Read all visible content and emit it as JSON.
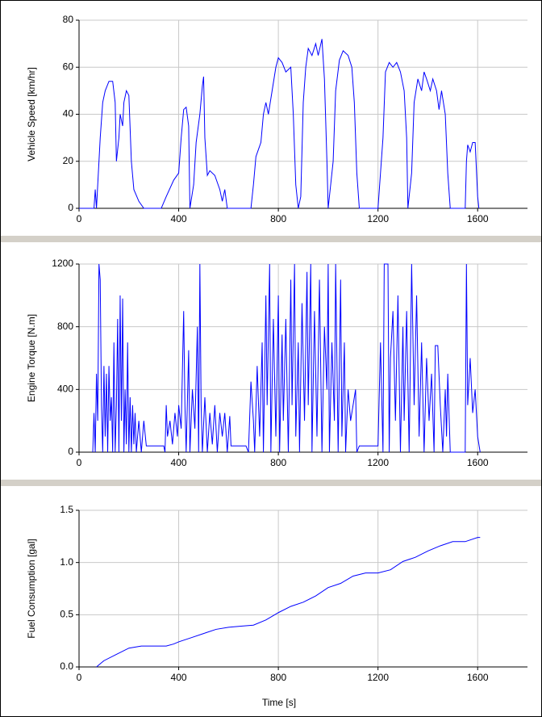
{
  "chart_data": [
    {
      "type": "line",
      "y_label": "Vehicle Speed [km/hr]",
      "color": "#0000ff",
      "xlim": [
        0,
        1800
      ],
      "xticks": [
        0,
        400,
        800,
        1200,
        1600
      ],
      "ylim": [
        0,
        80
      ],
      "yticks": [
        0,
        20,
        40,
        60,
        80
      ],
      "grid": true,
      "x": [
        0,
        60,
        65,
        70,
        75,
        85,
        95,
        105,
        120,
        135,
        145,
        150,
        160,
        165,
        175,
        180,
        190,
        200,
        210,
        220,
        240,
        260,
        330,
        350,
        380,
        400,
        410,
        420,
        430,
        440,
        445,
        460,
        470,
        485,
        495,
        500,
        505,
        515,
        525,
        545,
        565,
        575,
        585,
        595,
        690,
        700,
        710,
        720,
        730,
        740,
        750,
        760,
        775,
        790,
        800,
        815,
        830,
        850,
        860,
        870,
        880,
        890,
        900,
        910,
        920,
        935,
        950,
        960,
        975,
        985,
        995,
        1000,
        1020,
        1030,
        1045,
        1060,
        1080,
        1095,
        1105,
        1115,
        1125,
        1200,
        1220,
        1230,
        1245,
        1260,
        1275,
        1290,
        1305,
        1315,
        1320,
        1335,
        1345,
        1360,
        1375,
        1385,
        1395,
        1410,
        1420,
        1435,
        1445,
        1455,
        1470,
        1480,
        1490,
        1550,
        1555,
        1560,
        1570,
        1580,
        1590,
        1600,
        1605
      ],
      "values": [
        0,
        0,
        8,
        0,
        10,
        30,
        45,
        50,
        54,
        54,
        45,
        20,
        30,
        40,
        35,
        45,
        50,
        48,
        20,
        8,
        3,
        0,
        0,
        5,
        12,
        15,
        30,
        42,
        43,
        35,
        0,
        10,
        28,
        40,
        52,
        56,
        30,
        14,
        16,
        14,
        8,
        3,
        8,
        0,
        0,
        10,
        22,
        25,
        28,
        40,
        45,
        40,
        50,
        60,
        64,
        62,
        58,
        60,
        40,
        10,
        0,
        5,
        45,
        60,
        68,
        65,
        70,
        65,
        72,
        55,
        20,
        0,
        20,
        50,
        63,
        67,
        65,
        60,
        45,
        15,
        0,
        0,
        30,
        58,
        62,
        60,
        62,
        58,
        50,
        30,
        0,
        15,
        45,
        55,
        50,
        58,
        55,
        50,
        55,
        50,
        42,
        50,
        40,
        15,
        0,
        0,
        20,
        27,
        24,
        28,
        28,
        5,
        0
      ]
    },
    {
      "type": "line",
      "y_label": "Engine Torque [N.m]",
      "color": "#0000ff",
      "xlim": [
        0,
        1800
      ],
      "xticks": [
        0,
        400,
        800,
        1200,
        1600
      ],
      "ylim": [
        0,
        1200
      ],
      "yticks": [
        0,
        400,
        800,
        1200
      ],
      "grid": true,
      "x": [
        55,
        60,
        65,
        70,
        75,
        80,
        85,
        90,
        95,
        100,
        105,
        110,
        115,
        120,
        125,
        130,
        135,
        140,
        145,
        150,
        155,
        160,
        165,
        170,
        175,
        180,
        185,
        190,
        195,
        200,
        205,
        210,
        215,
        220,
        225,
        230,
        240,
        250,
        260,
        270,
        340,
        345,
        350,
        355,
        365,
        375,
        385,
        395,
        400,
        410,
        420,
        425,
        430,
        440,
        445,
        455,
        465,
        475,
        480,
        485,
        490,
        495,
        505,
        515,
        525,
        535,
        545,
        555,
        565,
        575,
        585,
        595,
        605,
        610,
        670,
        680,
        690,
        700,
        705,
        715,
        725,
        735,
        740,
        750,
        755,
        765,
        770,
        780,
        790,
        800,
        805,
        815,
        820,
        830,
        840,
        850,
        855,
        865,
        870,
        880,
        885,
        895,
        905,
        915,
        920,
        930,
        935,
        945,
        955,
        965,
        975,
        985,
        995,
        1000,
        1005,
        1015,
        1025,
        1030,
        1040,
        1050,
        1055,
        1065,
        1070,
        1080,
        1090,
        1100,
        1110,
        1115,
        1125,
        1200,
        1210,
        1220,
        1225,
        1240,
        1245,
        1250,
        1260,
        1270,
        1280,
        1290,
        1300,
        1305,
        1315,
        1325,
        1335,
        1345,
        1355,
        1365,
        1375,
        1385,
        1395,
        1405,
        1415,
        1425,
        1430,
        1440,
        1450,
        1460,
        1470,
        1475,
        1480,
        1490,
        1550,
        1555,
        1560,
        1570,
        1580,
        1590,
        1600,
        1610
      ],
      "values": [
        0,
        250,
        0,
        500,
        200,
        1200,
        1100,
        300,
        0,
        550,
        100,
        500,
        0,
        550,
        200,
        350,
        0,
        700,
        0,
        300,
        850,
        0,
        1000,
        200,
        980,
        0,
        400,
        50,
        700,
        0,
        350,
        0,
        300,
        50,
        250,
        0,
        200,
        0,
        200,
        40,
        40,
        0,
        300,
        100,
        200,
        50,
        250,
        100,
        300,
        150,
        900,
        300,
        0,
        650,
        0,
        400,
        150,
        800,
        0,
        1200,
        300,
        0,
        350,
        0,
        250,
        50,
        300,
        0,
        250,
        100,
        250,
        0,
        230,
        40,
        40,
        0,
        450,
        200,
        0,
        550,
        100,
        700,
        0,
        1000,
        300,
        1200,
        0,
        850,
        100,
        1000,
        0,
        750,
        200,
        850,
        0,
        1100,
        300,
        1200,
        100,
        700,
        0,
        950,
        200,
        1150,
        300,
        1200,
        0,
        900,
        100,
        1100,
        0,
        800,
        400,
        1200,
        0,
        700,
        200,
        1200,
        0,
        1100,
        100,
        700,
        0,
        400,
        200,
        300,
        400,
        0,
        40,
        40,
        700,
        0,
        1200,
        1200,
        0,
        600,
        900,
        200,
        1000,
        0,
        800,
        200,
        900,
        0,
        1200,
        300,
        1000,
        100,
        700,
        0,
        600,
        200,
        500,
        0,
        680,
        680,
        300,
        0,
        400,
        100,
        500,
        0,
        0,
        1200,
        300,
        600,
        250,
        400,
        100,
        0
      ]
    },
    {
      "type": "line",
      "y_label": "Fuel Consumption [gal]",
      "x_label": "Time [s]",
      "color": "#0000ff",
      "xlim": [
        0,
        1800
      ],
      "xticks": [
        0,
        400,
        800,
        1200,
        1600
      ],
      "ylim": [
        0,
        1.5
      ],
      "yticks": [
        {
          "value": 0,
          "label": "0.0"
        },
        0.5,
        {
          "value": 1,
          "label": "1.0"
        },
        1.5
      ],
      "grid": true,
      "x": [
        70,
        80,
        100,
        150,
        200,
        250,
        300,
        350,
        380,
        400,
        450,
        500,
        550,
        600,
        650,
        700,
        750,
        800,
        850,
        900,
        950,
        1000,
        1050,
        1100,
        1150,
        1200,
        1250,
        1300,
        1350,
        1400,
        1450,
        1500,
        1550,
        1600,
        1610
      ],
      "values": [
        0,
        0.02,
        0.06,
        0.12,
        0.18,
        0.2,
        0.2,
        0.2,
        0.22,
        0.24,
        0.28,
        0.32,
        0.36,
        0.38,
        0.39,
        0.4,
        0.45,
        0.52,
        0.58,
        0.62,
        0.68,
        0.76,
        0.8,
        0.87,
        0.9,
        0.9,
        0.93,
        1.01,
        1.05,
        1.11,
        1.16,
        1.2,
        1.2,
        1.24,
        1.24
      ]
    }
  ]
}
